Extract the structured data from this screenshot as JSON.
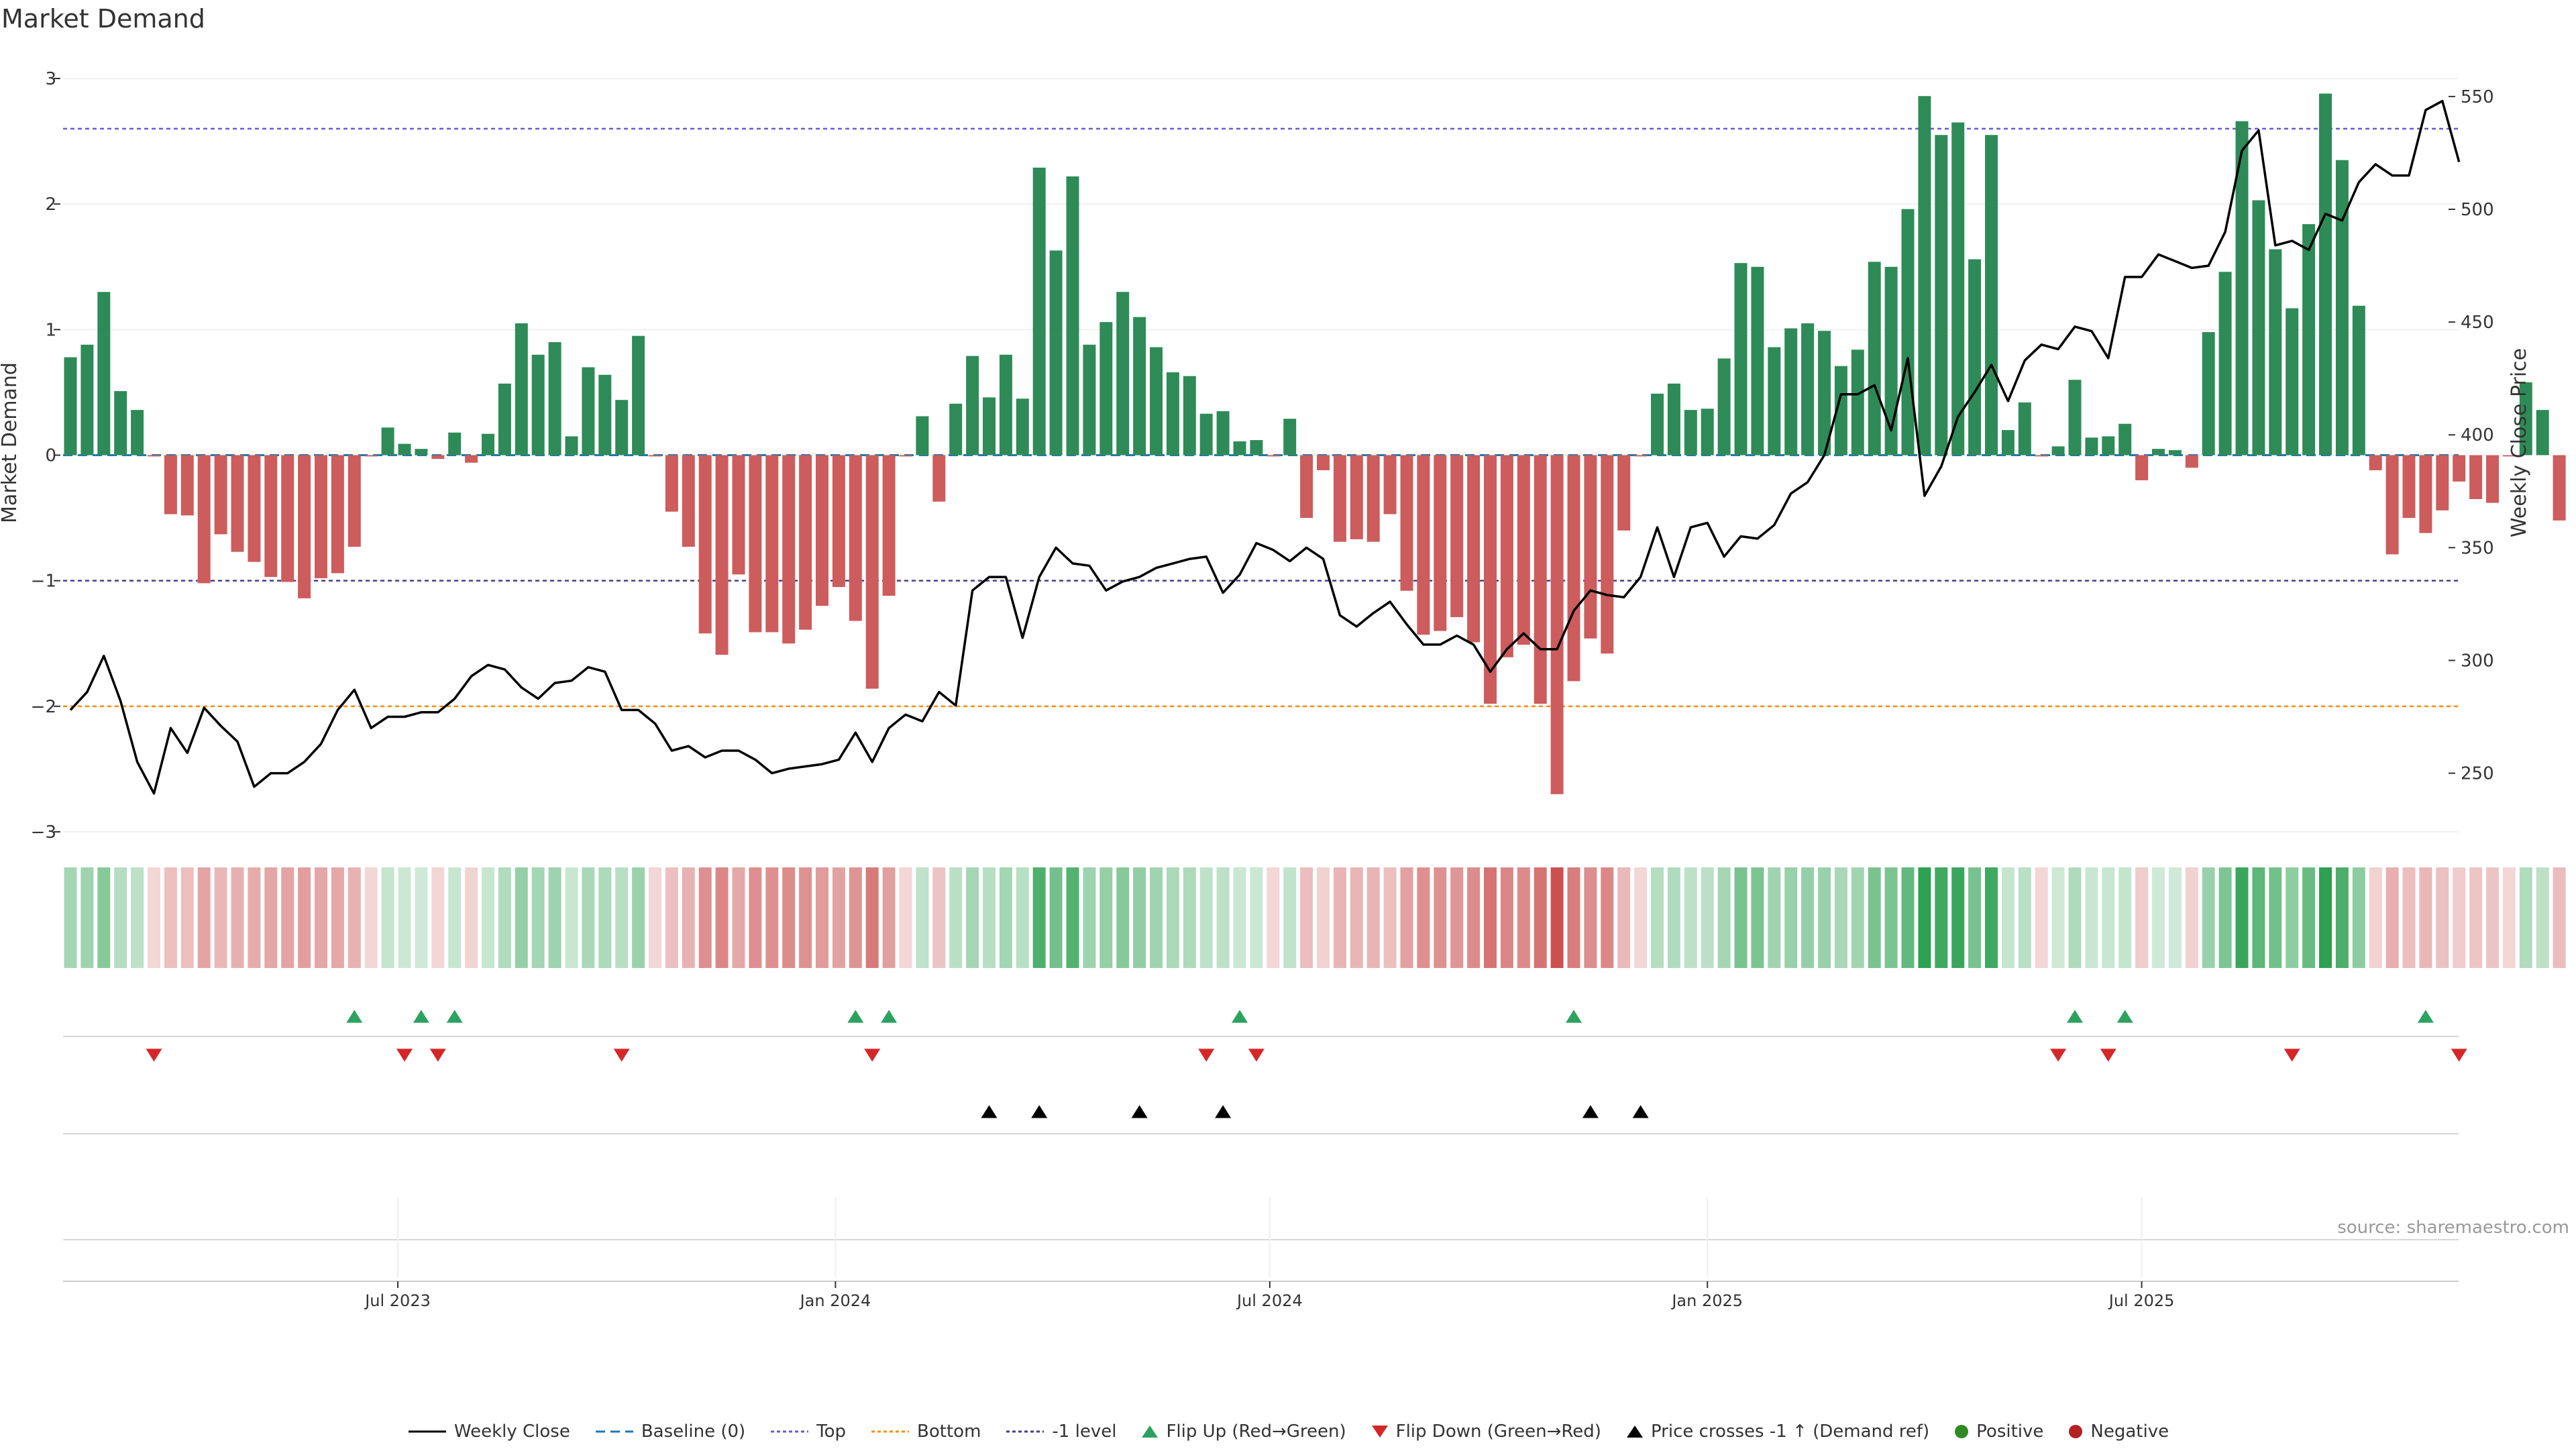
{
  "chart_data": {
    "type": "bar",
    "title": "Market Demand",
    "source_text": "source: sharemaestro.com",
    "ylabel_left": "Market Demand",
    "ylabel_right": "Weekly Close Price",
    "ylim_left": [
      -3,
      3
    ],
    "ylim_right": [
      224,
      558
    ],
    "yticks_left": [
      "3",
      "2",
      "1",
      "0",
      "−1",
      "−2",
      "−3"
    ],
    "yticks_left_values": [
      3,
      2,
      1,
      0,
      -1,
      -2,
      -3
    ],
    "yticks_right": [
      "550",
      "500",
      "450",
      "400",
      "350",
      "300",
      "250"
    ],
    "yticks_right_values": [
      550,
      500,
      450,
      400,
      350,
      300,
      250
    ],
    "x_tick_labels": [
      "Jul 2023",
      "Jan 2024",
      "Jul 2024",
      "Jan 2025",
      "Jul 2025"
    ],
    "x_tick_positions": [
      19.6,
      45.8,
      71.8,
      98.0,
      124.0
    ],
    "reference_lines": {
      "top": 2.6,
      "bottom": -2.0,
      "minus_one": -1.0,
      "baseline": 0
    },
    "demand": [
      0.78,
      0.88,
      1.3,
      0.51,
      0.36,
      -0.01,
      -0.47,
      -0.48,
      -1.02,
      -0.63,
      -0.77,
      -0.85,
      -0.97,
      -1.01,
      -1.14,
      -0.98,
      -0.94,
      -0.73,
      -0.01,
      0.22,
      0.09,
      0.05,
      -0.03,
      0.18,
      -0.06,
      0.17,
      0.57,
      1.05,
      0.8,
      0.9,
      0.15,
      0.7,
      0.64,
      0.44,
      0.95,
      -0.01,
      -0.45,
      -0.73,
      -1.42,
      -1.59,
      -0.95,
      -1.41,
      -1.41,
      -1.5,
      -1.39,
      -1.2,
      -1.05,
      -1.32,
      -1.86,
      -1.12,
      -0.01,
      0.31,
      -0.37,
      0.41,
      0.79,
      0.46,
      0.8,
      0.45,
      2.29,
      1.63,
      2.22,
      0.88,
      1.06,
      1.3,
      1.1,
      0.86,
      0.66,
      0.63,
      0.33,
      0.35,
      0.11,
      0.12,
      -0.01,
      0.29,
      -0.5,
      -0.12,
      -0.69,
      -0.67,
      -0.69,
      -0.47,
      -1.08,
      -1.43,
      -1.4,
      -1.29,
      -1.49,
      -1.98,
      -1.61,
      -1.51,
      -1.98,
      -2.7,
      -1.8,
      -1.46,
      -1.58,
      -0.6,
      -0.01,
      0.49,
      0.57,
      0.36,
      0.37,
      0.77,
      1.53,
      1.5,
      0.86,
      1.01,
      1.05,
      0.99,
      0.71,
      0.84,
      1.54,
      1.5,
      1.96,
      2.86,
      2.55,
      2.65,
      1.56,
      2.55,
      0.2,
      0.42,
      -0.01,
      0.07,
      0.6,
      0.14,
      0.15,
      0.25,
      -0.2,
      0.05,
      0.04,
      -0.1,
      0.98,
      1.46,
      2.66,
      2.03,
      1.64,
      1.17,
      1.84,
      2.88,
      2.35,
      1.19,
      -0.12,
      -0.79,
      -0.5,
      -0.62,
      -0.44,
      -0.21,
      -0.35,
      -0.38,
      -0.01,
      0.58,
      0.36,
      -0.52
    ],
    "weekly_close": [
      278,
      286,
      302,
      282,
      255,
      241,
      270,
      259,
      279,
      271,
      264,
      244,
      250,
      250,
      255,
      263,
      278,
      287,
      270,
      275,
      275,
      277,
      277,
      283,
      293,
      298,
      296,
      288,
      283,
      290,
      291,
      297,
      295,
      278,
      278,
      272,
      260,
      262,
      257,
      260,
      260,
      256,
      250,
      252,
      253,
      254,
      256,
      268,
      255,
      270,
      276,
      273,
      286,
      280,
      331,
      337,
      337,
      310,
      337,
      350,
      343,
      342,
      331,
      335,
      337,
      341,
      343,
      345,
      346,
      330,
      338,
      352,
      349,
      344,
      350,
      345,
      320,
      315,
      321,
      326,
      316,
      307,
      307,
      311,
      307,
      295,
      305,
      312,
      305,
      305,
      322,
      331,
      329,
      328,
      337,
      359,
      337,
      359,
      361,
      346,
      355,
      354,
      360,
      374,
      379,
      391,
      418,
      418,
      422,
      402,
      434,
      373,
      386,
      408,
      419,
      431,
      415,
      433,
      440,
      438,
      448,
      446,
      434,
      470,
      470,
      480,
      477,
      474,
      475,
      490,
      526,
      535,
      484,
      486,
      482,
      498,
      495,
      512,
      520,
      515,
      515,
      544,
      548,
      521
    ],
    "color_strip_levels": [
      0.78,
      0.88,
      1.3,
      0.51,
      0.36,
      -0.01,
      -0.47,
      -0.48,
      -1.02,
      -0.63,
      -0.77,
      -0.85,
      -0.97,
      -1.01,
      -1.14,
      -0.98,
      -0.94,
      -0.73,
      -0.01,
      0.22,
      0.09,
      0.05,
      -0.03,
      0.18,
      -0.06,
      0.17,
      0.57,
      1.05,
      0.8,
      0.9,
      0.15,
      0.7,
      0.64,
      0.44,
      0.95,
      -0.01,
      -0.45,
      -0.73,
      -1.42,
      -1.59,
      -0.95,
      -1.41,
      -1.41,
      -1.5,
      -1.39,
      -1.2,
      -1.05,
      -1.32,
      -1.86,
      -1.12,
      -0.01,
      0.31,
      -0.37,
      0.41,
      0.79,
      0.46,
      0.8,
      0.45,
      2.29,
      1.63,
      2.22,
      0.88,
      1.06,
      1.3,
      1.1,
      0.86,
      0.66,
      0.63,
      0.33,
      0.35,
      0.11,
      0.12,
      -0.01,
      0.29,
      -0.5,
      -0.12,
      -0.69,
      -0.67,
      -0.69,
      -0.47,
      -1.08,
      -1.43,
      -1.4,
      -1.29,
      -1.49,
      -1.98,
      -1.61,
      -1.51,
      -1.98,
      -2.7,
      -1.8,
      -1.46,
      -1.58,
      -0.6,
      -0.01,
      0.49,
      0.57,
      0.36,
      0.37,
      0.77,
      1.53,
      1.5,
      0.86,
      1.01,
      1.05,
      0.99,
      0.71,
      0.84,
      1.54,
      1.5,
      1.96,
      2.86,
      2.55,
      2.65,
      1.56,
      2.55,
      0.2,
      0.42,
      -0.01,
      0.07,
      0.6,
      0.14,
      0.15,
      0.25,
      -0.2,
      0.05,
      0.04,
      -0.1,
      0.98,
      1.46,
      2.66,
      2.03,
      1.64,
      1.17,
      1.84,
      2.88,
      2.35,
      1.19,
      -0.12,
      -0.79,
      -0.5,
      -0.62,
      -0.44,
      -0.21,
      -0.35,
      -0.38,
      -0.01,
      0.58,
      0.36,
      -0.52
    ],
    "flip_up_weeks": [
      17,
      21,
      23,
      47,
      49,
      70,
      90,
      120,
      123,
      141
    ],
    "flip_down_weeks": [
      5,
      20,
      22,
      33,
      48,
      68,
      71,
      119,
      122,
      133,
      143
    ],
    "price_cross_weeks": [
      55,
      58,
      64,
      69,
      91,
      94
    ],
    "colors": {
      "positive_bar": "#2e8b57",
      "negative_bar": "#cd5c5c",
      "flip_up": "#2ca25f",
      "flip_down": "#d62728",
      "cross": "#000000",
      "top_line": "#6a5acd",
      "bottom_line": "#ff8c00",
      "minus_one_line": "#483d8b",
      "baseline": "#1f77b4",
      "price_line": "#000000",
      "positive_dot": "#2e8b22",
      "negative_dot": "#b22222"
    }
  },
  "legend": [
    {
      "label": "Weekly Close",
      "icon": "line-icon"
    },
    {
      "label": "Baseline (0)",
      "icon": "dashed-line-icon"
    },
    {
      "label": "Top",
      "icon": "dotted-line-icon"
    },
    {
      "label": "Bottom",
      "icon": "dotted-line-icon"
    },
    {
      "label": "-1 level",
      "icon": "dotted-line-icon"
    },
    {
      "label": "Flip Up (Red→Green)",
      "icon": "triangle-up-icon"
    },
    {
      "label": "Flip Down (Green→Red)",
      "icon": "triangle-down-icon"
    },
    {
      "label": "Price crosses -1 ↑ (Demand ref)",
      "icon": "triangle-up-icon"
    },
    {
      "label": "Positive",
      "icon": "dot-icon"
    },
    {
      "label": "Negative",
      "icon": "dot-icon"
    }
  ]
}
